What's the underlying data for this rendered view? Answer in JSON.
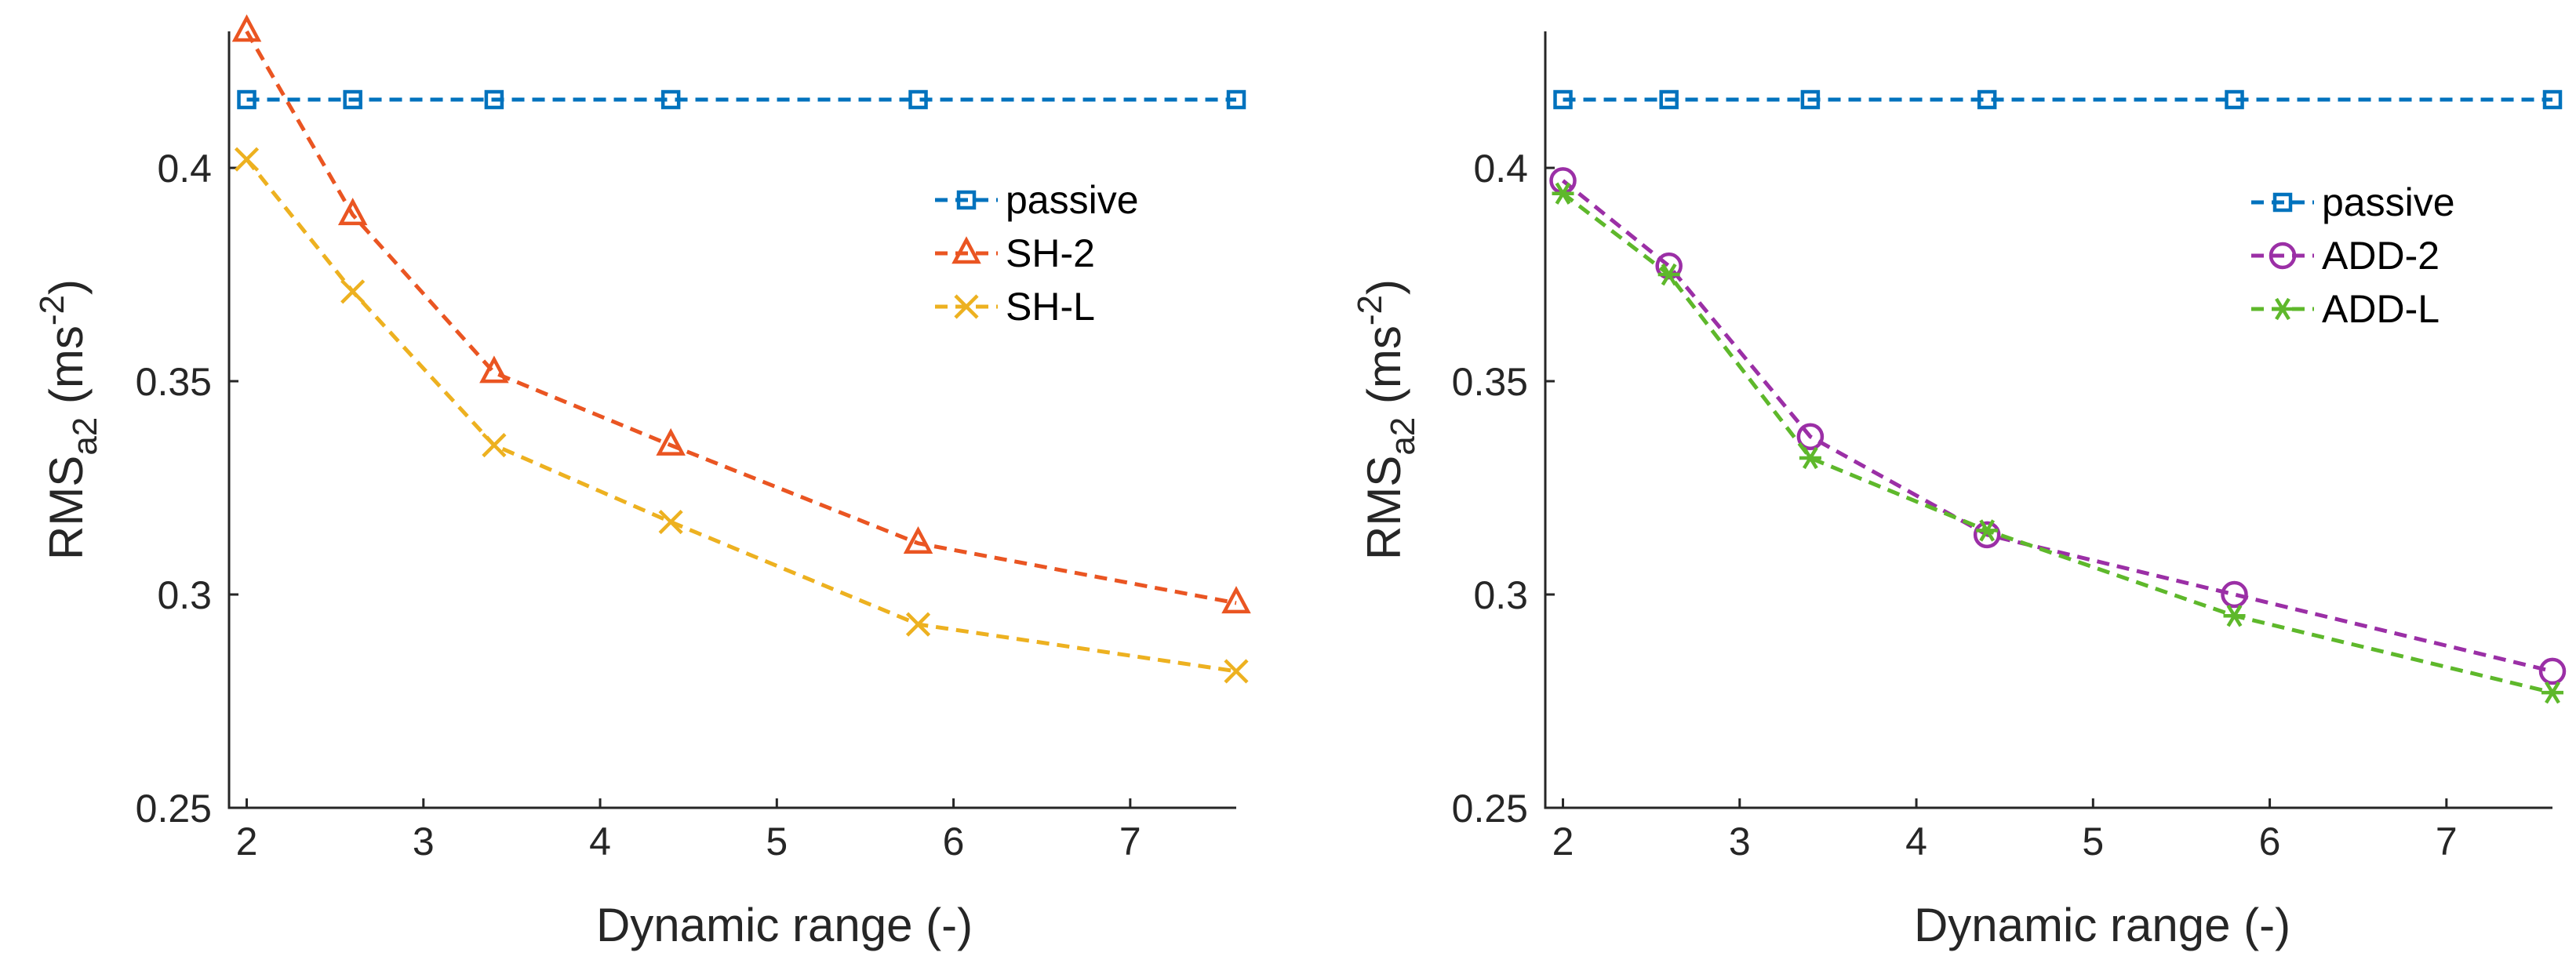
{
  "chart_data": [
    {
      "type": "line",
      "id": "left",
      "xlabel": "Dynamic range (-)",
      "ylabel_main": "RMS",
      "ylabel_sub": "a2",
      "ylabel_unit_open": " (ms",
      "ylabel_unit_sup": "-2",
      "ylabel_unit_close": ")",
      "xlim": [
        1.9,
        7.6
      ],
      "ylim": [
        0.25,
        0.432
      ],
      "xticks": [
        2,
        3,
        4,
        5,
        6,
        7
      ],
      "xtick_labels": [
        "2",
        "3",
        "4",
        "5",
        "6",
        "7"
      ],
      "yticks": [
        0.25,
        0.3,
        0.35,
        0.4
      ],
      "ytick_labels": [
        "0.25",
        "0.3",
        "0.35",
        "0.4"
      ],
      "legend_position": "top-right",
      "x": [
        2,
        2.6,
        3.4,
        4.4,
        5.8,
        7.6
      ],
      "series": [
        {
          "name": "passive",
          "color": "#0072BD",
          "marker": "square",
          "values": [
            0.416,
            0.416,
            0.416,
            0.416,
            0.416,
            0.416
          ]
        },
        {
          "name": "SH-2",
          "color": "#EA5522",
          "marker": "triangle",
          "values": [
            0.432,
            0.389,
            0.352,
            0.335,
            0.312,
            0.298
          ]
        },
        {
          "name": "SH-L",
          "color": "#EDB120",
          "marker": "x",
          "values": [
            0.402,
            0.371,
            0.335,
            0.317,
            0.293,
            0.282
          ]
        }
      ]
    },
    {
      "type": "line",
      "id": "right",
      "xlabel": "Dynamic range (-)",
      "ylabel_main": "RMS",
      "ylabel_sub": "a2",
      "ylabel_unit_open": " (ms",
      "ylabel_unit_sup": "-2",
      "ylabel_unit_close": ")",
      "xlim": [
        1.9,
        7.6
      ],
      "ylim": [
        0.25,
        0.432
      ],
      "xticks": [
        2,
        3,
        4,
        5,
        6,
        7
      ],
      "xtick_labels": [
        "2",
        "3",
        "4",
        "5",
        "6",
        "7"
      ],
      "yticks": [
        0.25,
        0.3,
        0.35,
        0.4
      ],
      "ytick_labels": [
        "0.25",
        "0.3",
        "0.35",
        "0.4"
      ],
      "legend_position": "top-right",
      "x": [
        2,
        2.6,
        3.4,
        4.4,
        5.8,
        7.6
      ],
      "series": [
        {
          "name": "passive",
          "color": "#0072BD",
          "marker": "square",
          "values": [
            0.416,
            0.416,
            0.416,
            0.416,
            0.416,
            0.416
          ]
        },
        {
          "name": "ADD-2",
          "color": "#9B2FA6",
          "marker": "circle",
          "values": [
            0.397,
            0.377,
            0.337,
            0.314,
            0.3,
            0.282
          ]
        },
        {
          "name": "ADD-L",
          "color": "#5EB82B",
          "marker": "asterisk",
          "values": [
            0.394,
            0.375,
            0.332,
            0.315,
            0.295,
            0.277
          ]
        }
      ]
    }
  ]
}
